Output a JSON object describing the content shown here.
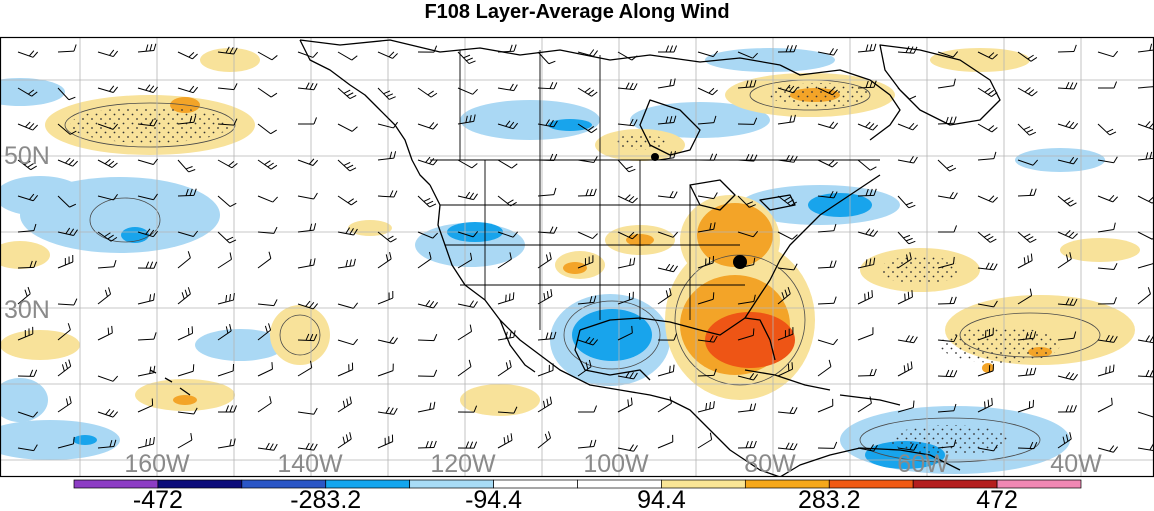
{
  "title": "F108 Layer-Average Along Wind",
  "map": {
    "lat_labels": [
      "50N",
      "30N"
    ],
    "lon_labels": [
      "160W",
      "140W",
      "120W",
      "100W",
      "80W",
      "60W",
      "40W"
    ]
  },
  "colorbar": {
    "colors": [
      "#8c3cc4",
      "#0c0c7a",
      "#2a56c6",
      "#14a6ee",
      "#a8dcf6",
      "#ffffff",
      "#ffffff",
      "#fae696",
      "#f6a81a",
      "#f05a14",
      "#b41e1e",
      "#f088b4"
    ],
    "labels": [
      "-472",
      "-283.2",
      "-94.4",
      "94.4",
      "283.2",
      "472"
    ]
  },
  "colors": {
    "pos_weak": "#f8e29a",
    "pos_mid": "#f3a428",
    "pos_strong": "#ee5515",
    "neg_weak": "#aad8f4",
    "neg_mid": "#18a4ec",
    "coast": "#000000",
    "grid": "#b4b4b4"
  }
}
